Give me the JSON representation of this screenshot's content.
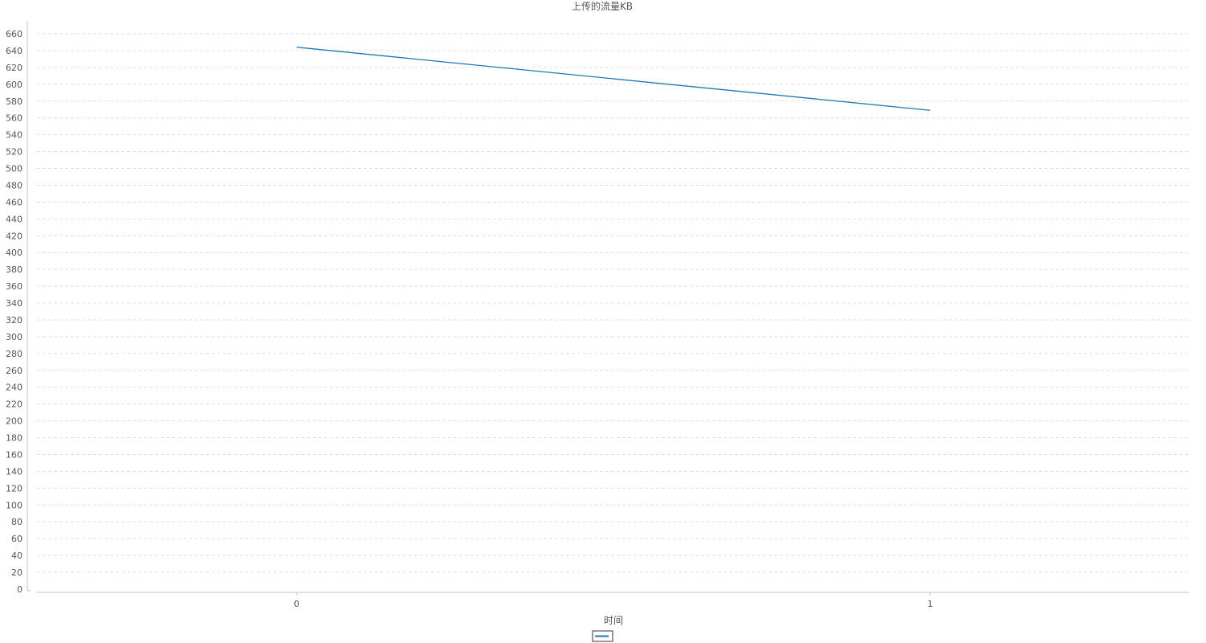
{
  "chart_data": {
    "type": "line",
    "title": "上传的流量KB",
    "xlabel": "时间",
    "ylabel": "",
    "categories": [
      "0",
      "1"
    ],
    "series": [
      {
        "values": [
          644,
          569
        ],
        "color": "#1f77b4"
      }
    ],
    "ylim": [
      0,
      660
    ],
    "ytick_step": 20,
    "grid": true,
    "legend": "bottom-center"
  }
}
